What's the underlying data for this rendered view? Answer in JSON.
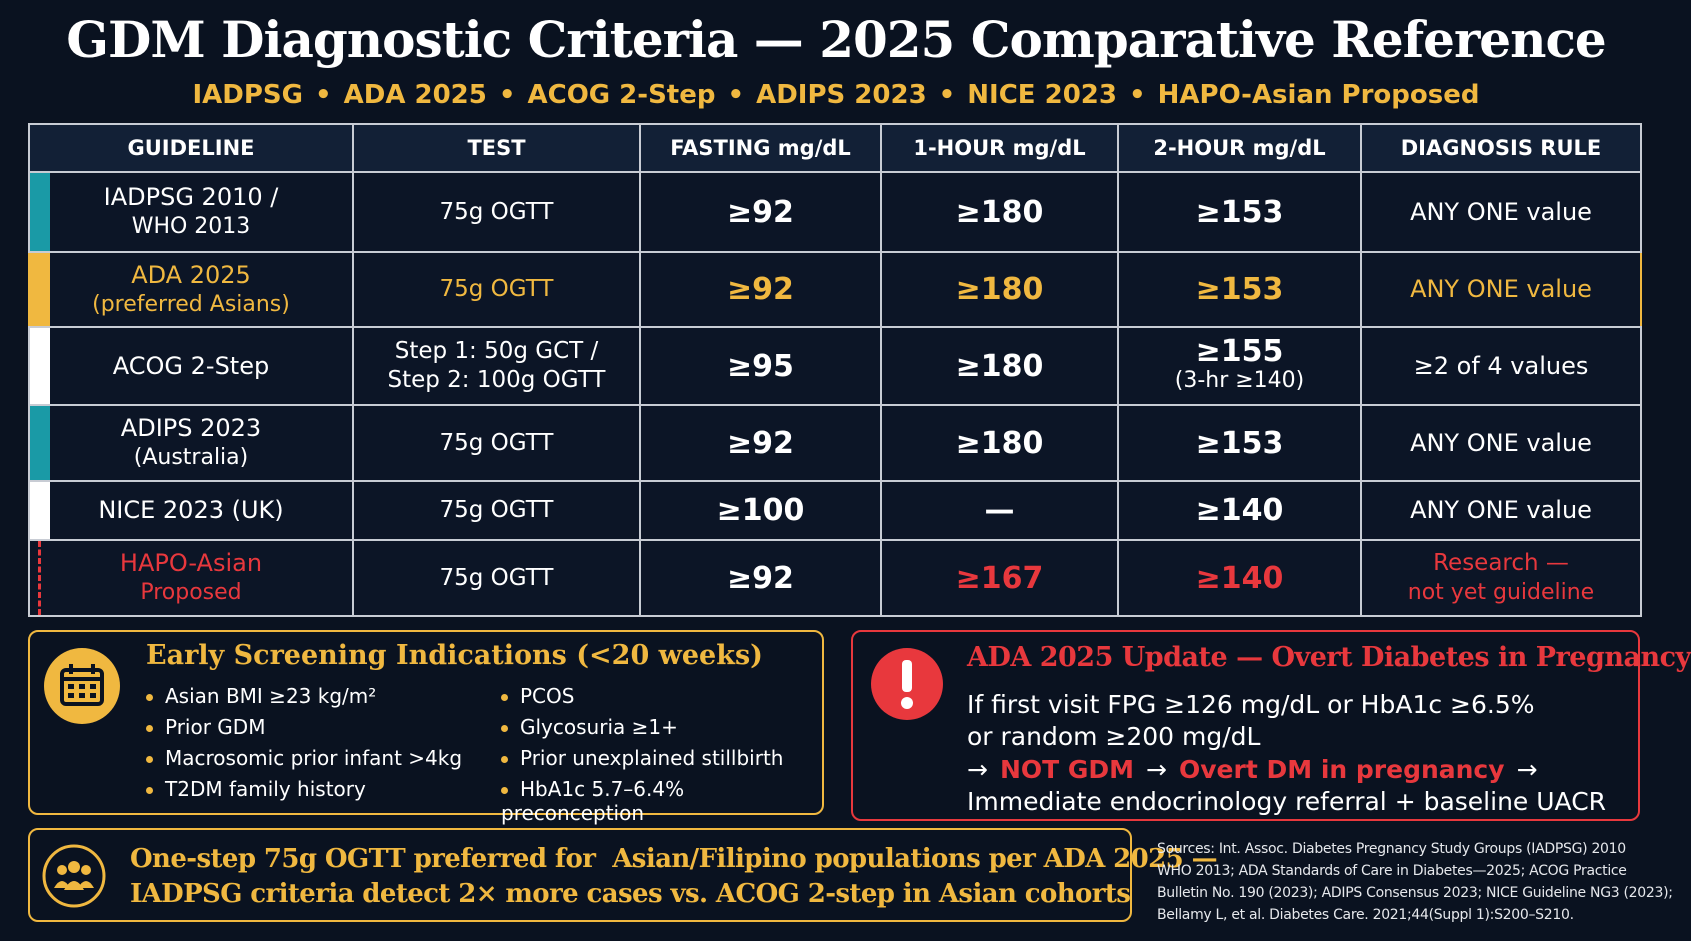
{
  "header": {
    "title": "GDM Diagnostic Criteria — 2025 Comparative Reference",
    "subtitle_items": [
      "IADPSG",
      "ADA 2025",
      "ACOG 2-Step",
      "ADIPS 2023",
      "NICE 2023",
      "HAPO-Asian Proposed"
    ],
    "subtitle_separator": "•"
  },
  "table": {
    "headers": [
      "GUIDELINE",
      "TEST",
      "FASTING mg/dL",
      "1-HOUR mg/dL",
      "2-HOUR mg/dL",
      "DIAGNOSIS RULE"
    ],
    "rows": [
      [
        [
          "IADPSG 2010 /",
          "WHO 2013"
        ],
        [
          "75g OGTT"
        ],
        [
          "≥92"
        ],
        [
          "≥180"
        ],
        [
          "≥153"
        ],
        [
          "ANY ONE value"
        ]
      ],
      [
        [
          "ADA 2025",
          "(preferred Asians)"
        ],
        [
          "75g OGTT"
        ],
        [
          "≥92"
        ],
        [
          "≥180"
        ],
        [
          "≥153"
        ],
        [
          "ANY ONE value"
        ]
      ],
      [
        [
          "ACOG 2-Step"
        ],
        [
          "Step 1: 50g GCT /",
          "Step 2: 100g OGTT"
        ],
        [
          "≥95"
        ],
        [
          "≥180"
        ],
        [
          "≥155",
          "(3-hr ≥140)"
        ],
        [
          "≥2 of 4 values"
        ]
      ],
      [
        [
          "ADIPS 2023",
          "(Australia)"
        ],
        [
          "75g OGTT"
        ],
        [
          "≥92"
        ],
        [
          "≥180"
        ],
        [
          "≥153"
        ],
        [
          "ANY ONE value"
        ]
      ],
      [
        [
          "NICE 2023 (UK)"
        ],
        [
          "75g OGTT"
        ],
        [
          "≥100"
        ],
        [
          "—"
        ],
        [
          "≥140"
        ],
        [
          "ANY ONE value"
        ]
      ],
      [
        [
          "HAPO-Asian",
          "Proposed"
        ],
        [
          "75g OGTT"
        ],
        [
          "≥92"
        ],
        [
          "≥167"
        ],
        [
          "≥140"
        ],
        [
          "Research —",
          "not yet guideline"
        ]
      ]
    ]
  },
  "early_screening": {
    "title": "Early Screening Indications (<20 weeks)",
    "items": [
      "Asian BMI ≥23 kg/m²",
      "Prior GDM",
      "Macrosomic prior infant >4kg",
      "T2DM family history",
      "PCOS",
      "Glycosuria ≥1+",
      "Prior unexplained stillbirth",
      "HbA1c 5.7–6.4% preconception"
    ]
  },
  "overt_update": {
    "title": "ADA 2025 Update — Overt Diabetes in Pregnancy",
    "line1": "If first visit FPG ≥126 mg/dL or HbA1c ≥6.5%",
    "line2": "or random ≥200 mg/dL",
    "line3": [
      "→",
      "NOT GDM",
      "→",
      "Overt DM in pregnancy",
      "→"
    ],
    "line4": "Immediate endocrinology referral + baseline UACR"
  },
  "banner": {
    "lines": [
      "One-step 75g OGTT preferred for  Asian/Filipino populations per ADA 2025 —",
      "IADPSG criteria detect 2× more cases vs. ACOG 2-step in Asian cohorts"
    ]
  },
  "sources": {
    "lines": [
      "Sources: Int. Assoc. Diabetes Pregnancy Study Groups (IADPSG) 2010",
      "WHO 2013; ADA Standards of Care in Diabetes—2025; ACOG Practice",
      "Bulletin No. 190 (2023); ADIPS Consensus 2023; NICE Guideline NG3 (2023);",
      "Bellamy L, et al. Diabetes Care. 2021;44(Suppl 1):S200–S210."
    ]
  }
}
